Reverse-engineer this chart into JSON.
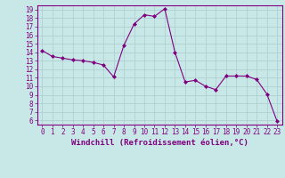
{
  "x": [
    0,
    1,
    2,
    3,
    4,
    5,
    6,
    7,
    8,
    9,
    10,
    11,
    12,
    13,
    14,
    15,
    16,
    17,
    18,
    19,
    20,
    21,
    22,
    23
  ],
  "y": [
    14.2,
    13.5,
    13.3,
    13.1,
    13.0,
    12.8,
    12.5,
    11.1,
    14.8,
    17.3,
    18.4,
    18.2,
    19.1,
    14.0,
    10.5,
    10.7,
    10.0,
    9.6,
    11.2,
    11.2,
    11.2,
    10.8,
    9.1,
    5.9
  ],
  "line_color": "#800080",
  "marker": "D",
  "marker_size": 2,
  "bg_color": "#c8e8e8",
  "grid_color": "#aacccc",
  "xlabel": "Windchill (Refroidissement éolien,°C)",
  "xlabel_color": "#800080",
  "tick_color": "#800080",
  "bottom_bar_color": "#9900aa",
  "ylim": [
    5.5,
    19.5
  ],
  "xlim": [
    -0.5,
    23.5
  ],
  "yticks": [
    6,
    7,
    8,
    9,
    10,
    11,
    12,
    13,
    14,
    15,
    16,
    17,
    18,
    19
  ],
  "xticks": [
    0,
    1,
    2,
    3,
    4,
    5,
    6,
    7,
    8,
    9,
    10,
    11,
    12,
    13,
    14,
    15,
    16,
    17,
    18,
    19,
    20,
    21,
    22,
    23
  ],
  "tick_fontsize": 5.5,
  "xlabel_fontsize": 6.5
}
